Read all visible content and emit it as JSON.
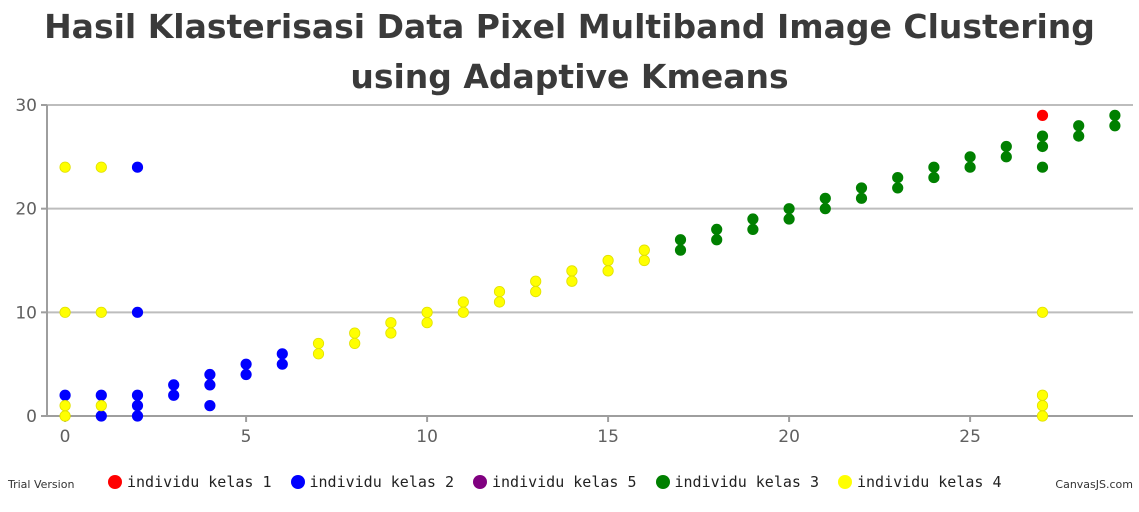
{
  "chart_data": {
    "type": "scatter",
    "title": "Hasil Klasterisasi Data Pixel Multiband Image Clustering using Adaptive Kmeans",
    "xlabel": "",
    "ylabel": "",
    "xlim": [
      -0.5,
      29.5
    ],
    "ylim": [
      0,
      30
    ],
    "x_ticks": [
      0,
      5,
      10,
      15,
      20,
      25
    ],
    "y_ticks": [
      0,
      10,
      20,
      30
    ],
    "grid": {
      "horizontal": true,
      "vertical": false
    },
    "legend_position": "bottom",
    "series": [
      {
        "name": "individu kelas 1",
        "color": "#ff0000",
        "points": [
          [
            27,
            29
          ]
        ]
      },
      {
        "name": "individu kelas 2",
        "color": "#0000ff",
        "points": [
          [
            2,
            24
          ],
          [
            0,
            2
          ],
          [
            1,
            2
          ],
          [
            2,
            2
          ],
          [
            2,
            1
          ],
          [
            2,
            0
          ],
          [
            1,
            0
          ],
          [
            2,
            10
          ],
          [
            3,
            3
          ],
          [
            3,
            2
          ],
          [
            4,
            4
          ],
          [
            4,
            3
          ],
          [
            4,
            1
          ],
          [
            5,
            5
          ],
          [
            5,
            4
          ],
          [
            6,
            6
          ],
          [
            6,
            5
          ]
        ]
      },
      {
        "name": "individu kelas 5",
        "color": "#800080",
        "points": []
      },
      {
        "name": "individu kelas 3",
        "color": "#008000",
        "points": [
          [
            17,
            17
          ],
          [
            17,
            16
          ],
          [
            18,
            18
          ],
          [
            18,
            17
          ],
          [
            19,
            19
          ],
          [
            19,
            18
          ],
          [
            20,
            20
          ],
          [
            20,
            19
          ],
          [
            21,
            21
          ],
          [
            21,
            20
          ],
          [
            22,
            22
          ],
          [
            22,
            21
          ],
          [
            23,
            23
          ],
          [
            23,
            22
          ],
          [
            24,
            24
          ],
          [
            24,
            23
          ],
          [
            25,
            25
          ],
          [
            25,
            24
          ],
          [
            26,
            26
          ],
          [
            26,
            25
          ],
          [
            27,
            27
          ],
          [
            27,
            26
          ],
          [
            27,
            24
          ],
          [
            28,
            28
          ],
          [
            28,
            27
          ],
          [
            29,
            29
          ],
          [
            29,
            28
          ]
        ]
      },
      {
        "name": "individu kelas 4",
        "color": "#ffff00",
        "points": [
          [
            0,
            24
          ],
          [
            1,
            24
          ],
          [
            0,
            10
          ],
          [
            1,
            10
          ],
          [
            0,
            1
          ],
          [
            0,
            0
          ],
          [
            1,
            1
          ],
          [
            7,
            7
          ],
          [
            7,
            6
          ],
          [
            8,
            8
          ],
          [
            8,
            7
          ],
          [
            9,
            9
          ],
          [
            9,
            8
          ],
          [
            10,
            10
          ],
          [
            10,
            9
          ],
          [
            11,
            11
          ],
          [
            11,
            10
          ],
          [
            12,
            12
          ],
          [
            12,
            11
          ],
          [
            13,
            13
          ],
          [
            13,
            12
          ],
          [
            14,
            14
          ],
          [
            14,
            13
          ],
          [
            15,
            15
          ],
          [
            15,
            14
          ],
          [
            16,
            16
          ],
          [
            16,
            15
          ],
          [
            27,
            10
          ],
          [
            27,
            2
          ],
          [
            27,
            1
          ],
          [
            27,
            0
          ]
        ]
      }
    ]
  },
  "credits": {
    "trial": "Trial Version",
    "brand": "CanvasJS.com"
  }
}
